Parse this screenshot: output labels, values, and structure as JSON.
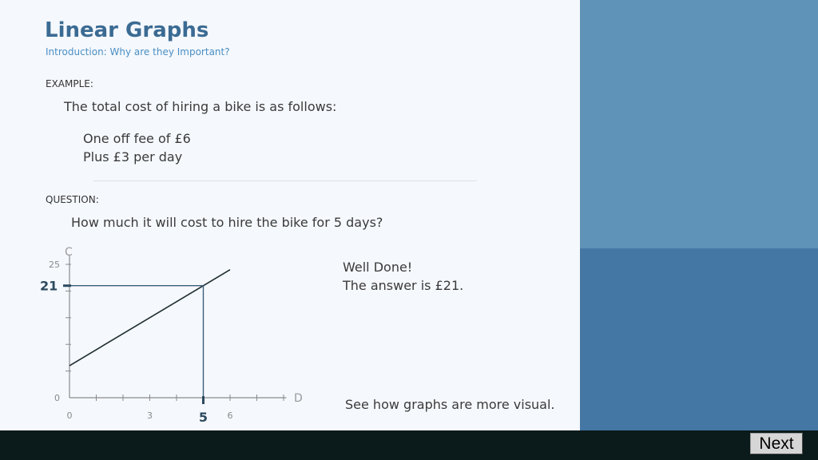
{
  "header": {
    "title": "Linear Graphs",
    "subtitle": "Introduction: Why are they Important?"
  },
  "example": {
    "label": "EXAMPLE:",
    "intro": "The total cost of hiring a bike is as follows:",
    "line1": "One off fee of £6",
    "line2": "Plus £3 per day"
  },
  "question": {
    "label": "QUESTION:",
    "text": "How much it will cost to hire the bike for 5 days?"
  },
  "feedback": {
    "line1": "Well Done!",
    "line2": "The answer is £21.",
    "note": "See how graphs are more visual."
  },
  "navigation": {
    "next_label": "Next"
  },
  "graph": {
    "x_axis_label": "D",
    "y_axis_label": "C",
    "x_ticks_labels": [
      "0",
      "3",
      "6"
    ],
    "y_ticks_labels": [
      "0",
      "25"
    ],
    "highlight_x": "5",
    "highlight_y": "21"
  },
  "chart_data": {
    "type": "line",
    "x": [
      0,
      6
    ],
    "y": [
      6,
      24
    ],
    "xlabel": "D",
    "ylabel": "C",
    "xlim": [
      0,
      8
    ],
    "ylim": [
      0,
      25
    ],
    "highlight": {
      "x": 5,
      "y": 21
    },
    "grid": false
  },
  "colors": {
    "title": "#3b6b93",
    "subtitle": "#4a8fc4",
    "side_top": "#5f93b7",
    "side_bottom": "#4577a4",
    "bottom_bar": "#0b1a1a",
    "guide_line": "#3a5f7a"
  }
}
